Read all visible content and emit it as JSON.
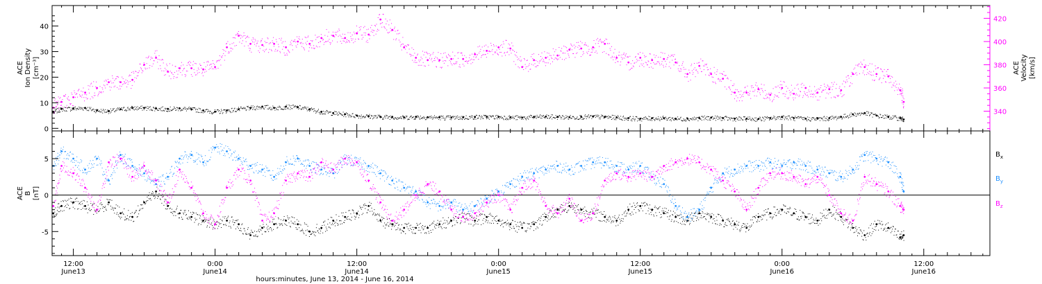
{
  "figure": {
    "xlabel": "hours:minutes, June 13, 2014 - June 16, 2014",
    "x_ticks": [
      {
        "hour": 12,
        "time": "12:00",
        "date": "June13"
      },
      {
        "hour": 24,
        "time": "0:00",
        "date": "June14"
      },
      {
        "hour": 36,
        "time": "12:00",
        "date": "June14"
      },
      {
        "hour": 48,
        "time": "0:00",
        "date": "June15"
      },
      {
        "hour": 60,
        "time": "12:00",
        "date": "June15"
      },
      {
        "hour": 72,
        "time": "0:00",
        "date": "June16"
      },
      {
        "hour": 84,
        "time": "12:00",
        "date": "June16"
      }
    ],
    "xlim_hours": [
      10.2,
      89.6
    ]
  },
  "chart_data": [
    {
      "type": "scatter",
      "panel": "top",
      "ylabel_left": [
        "ACE",
        "Ion Density",
        "[cm⁻³]"
      ],
      "ylabel_right": [
        "ACE",
        "Velocity",
        "[km/s]"
      ],
      "ylim_left": [
        -1,
        48
      ],
      "ylim_right": [
        323,
        431
      ],
      "left_ticks": [
        0,
        10,
        20,
        30,
        40
      ],
      "right_ticks": [
        340,
        360,
        380,
        400,
        420
      ],
      "series": [
        {
          "axis": "left",
          "color": "#000000",
          "x": [
            10.3,
            11,
            12,
            13,
            14,
            15,
            16,
            17,
            18,
            19,
            20,
            21,
            22,
            23,
            24,
            25,
            26,
            27,
            28,
            29,
            30,
            31,
            32,
            33,
            34,
            35,
            36,
            37,
            38,
            39,
            40,
            41,
            42,
            43,
            44,
            45,
            46,
            47,
            48,
            49,
            50,
            51,
            52,
            53,
            54,
            55,
            56,
            57,
            58,
            59,
            60,
            61,
            62,
            63,
            64,
            65,
            66,
            67,
            68,
            69,
            70,
            71,
            72,
            73,
            74,
            75,
            76,
            77,
            78,
            79,
            80,
            81,
            82,
            82.3
          ],
          "y": [
            6.5,
            7.6,
            7.8,
            8.0,
            7.0,
            6.8,
            7.5,
            8.0,
            8.0,
            7.8,
            7.6,
            7.8,
            7.5,
            7.0,
            6.5,
            7.0,
            7.5,
            8.0,
            8.5,
            8.0,
            8.5,
            8.3,
            7.5,
            6.5,
            6.0,
            5.5,
            5.0,
            4.8,
            4.5,
            4.5,
            4.3,
            4.5,
            4.4,
            4.3,
            4.2,
            4.3,
            4.5,
            4.5,
            4.5,
            4.3,
            4.2,
            4.5,
            4.6,
            4.5,
            4.4,
            4.5,
            4.6,
            4.5,
            4.3,
            4.0,
            3.8,
            4.0,
            4.0,
            3.8,
            3.8,
            4.0,
            4.2,
            4.0,
            3.8,
            3.8,
            3.7,
            4.0,
            4.5,
            4.0,
            3.8,
            3.8,
            4.0,
            4.5,
            5.5,
            6.0,
            5.0,
            4.5,
            4.0,
            3.5
          ]
        },
        {
          "axis": "right",
          "color": "#ff00ff",
          "x": [
            10.3,
            11,
            12,
            13,
            14,
            15,
            16,
            17,
            18,
            19,
            20,
            21,
            22,
            23,
            24,
            25,
            26,
            27,
            28,
            29,
            30,
            31,
            32,
            33,
            34,
            35,
            36,
            37,
            38,
            39,
            40,
            41,
            42,
            43,
            44,
            45,
            46,
            47,
            48,
            49,
            50,
            51,
            52,
            53,
            54,
            55,
            56,
            57,
            58,
            59,
            60,
            61,
            62,
            63,
            64,
            65,
            66,
            67,
            68,
            69,
            70,
            71,
            72,
            73,
            74,
            75,
            76,
            77,
            78,
            79,
            80,
            81,
            82,
            82.3
          ],
          "y": [
            343,
            348,
            352,
            356,
            360,
            365,
            365,
            367,
            380,
            386,
            374,
            377,
            377,
            376,
            378,
            395,
            405,
            398,
            397,
            398,
            395,
            400,
            398,
            403,
            405,
            403,
            407,
            406,
            419,
            410,
            395,
            386,
            384,
            384,
            385,
            385,
            389,
            392,
            395,
            394,
            378,
            384,
            386,
            388,
            393,
            394,
            395,
            398,
            386,
            382,
            386,
            384,
            385,
            382,
            372,
            379,
            372,
            368,
            356,
            356,
            359,
            354,
            360,
            355,
            360,
            356,
            359,
            358,
            372,
            378,
            372,
            370,
            358,
            348
          ]
        }
      ]
    },
    {
      "type": "scatter",
      "panel": "bottom",
      "ylabel_left": [
        "ACE",
        "B",
        "[nT]"
      ],
      "ylim": [
        -8.3,
        8.8
      ],
      "y_ticks": [
        -5,
        0,
        5
      ],
      "zero_line": true,
      "legend_position": "right",
      "series": [
        {
          "name": "Bx",
          "label_main": "B",
          "label_sub": "x",
          "color": "#000000",
          "x": [
            10.3,
            11,
            12,
            13,
            14,
            15,
            16,
            17,
            18,
            19,
            20,
            21,
            22,
            23,
            24,
            25,
            26,
            27,
            28,
            29,
            30,
            31,
            32,
            33,
            34,
            35,
            36,
            37,
            38,
            39,
            40,
            41,
            42,
            43,
            44,
            45,
            46,
            47,
            48,
            49,
            50,
            51,
            52,
            53,
            54,
            55,
            56,
            57,
            58,
            59,
            60,
            61,
            62,
            63,
            64,
            65,
            66,
            67,
            68,
            69,
            70,
            71,
            72,
            73,
            74,
            75,
            76,
            77,
            78,
            79,
            80,
            81,
            82,
            82.3
          ],
          "y": [
            -2.5,
            -1.5,
            -1.0,
            -1.5,
            -2.0,
            -1.0,
            -2.5,
            -3.0,
            -1.0,
            0.5,
            -1.5,
            -2.5,
            -3.0,
            -3.5,
            -4.0,
            -3.5,
            -4.0,
            -5.5,
            -4.5,
            -4.0,
            -3.5,
            -4.0,
            -5.0,
            -4.5,
            -3.5,
            -3.0,
            -2.5,
            -1.5,
            -3.5,
            -4.0,
            -4.5,
            -4.5,
            -4.5,
            -4.0,
            -3.5,
            -3.0,
            -3.5,
            -3.0,
            -3.5,
            -4.0,
            -4.5,
            -4.0,
            -3.0,
            -2.0,
            -1.5,
            -2.0,
            -2.5,
            -3.0,
            -3.5,
            -2.0,
            -1.5,
            -2.0,
            -2.5,
            -3.0,
            -3.5,
            -2.5,
            -3.0,
            -3.5,
            -4.0,
            -4.5,
            -3.0,
            -2.5,
            -2.0,
            -2.5,
            -3.0,
            -3.5,
            -2.0,
            -3.0,
            -4.5,
            -5.5,
            -4.0,
            -4.5,
            -5.8,
            -5.5
          ]
        },
        {
          "name": "By",
          "label_main": "B",
          "label_sub": "y",
          "color": "#1e90ff",
          "x": [
            10.3,
            11,
            12,
            13,
            14,
            15,
            16,
            17,
            18,
            19,
            20,
            21,
            22,
            23,
            24,
            25,
            26,
            27,
            28,
            29,
            30,
            31,
            32,
            33,
            34,
            35,
            36,
            37,
            38,
            39,
            40,
            41,
            42,
            43,
            44,
            45,
            46,
            47,
            48,
            49,
            50,
            51,
            52,
            53,
            54,
            55,
            56,
            57,
            58,
            59,
            60,
            61,
            62,
            63,
            64,
            65,
            66,
            67,
            68,
            69,
            70,
            71,
            72,
            73,
            74,
            75,
            76,
            77,
            78,
            79,
            80,
            81,
            82,
            82.3
          ],
          "y": [
            4.0,
            6.0,
            5.0,
            3.5,
            5.0,
            2.0,
            5.5,
            4.0,
            3.0,
            1.5,
            2.5,
            5.0,
            5.5,
            4.5,
            6.5,
            6.0,
            5.0,
            4.0,
            3.5,
            2.5,
            4.5,
            5.0,
            4.0,
            3.5,
            3.0,
            5.0,
            4.5,
            4.0,
            3.0,
            2.0,
            1.0,
            0.5,
            -1.0,
            -1.5,
            -1.0,
            -2.0,
            -1.5,
            -0.5,
            0.5,
            1.5,
            2.5,
            3.0,
            3.5,
            4.0,
            3.5,
            4.0,
            4.5,
            4.5,
            4.0,
            3.5,
            4.0,
            2.5,
            1.5,
            -1.5,
            -3.0,
            -2.0,
            1.0,
            3.0,
            3.5,
            4.0,
            4.0,
            4.5,
            4.0,
            4.5,
            4.0,
            3.5,
            3.0,
            2.5,
            3.5,
            5.5,
            5.0,
            4.5,
            2.5,
            0.5
          ]
        },
        {
          "name": "Bz",
          "label_main": "B",
          "label_sub": "z",
          "color": "#ff00ff",
          "x": [
            10.3,
            11,
            12,
            13,
            14,
            15,
            16,
            17,
            18,
            19,
            20,
            21,
            22,
            23,
            24,
            25,
            26,
            27,
            28,
            29,
            30,
            31,
            32,
            33,
            34,
            35,
            36,
            37,
            38,
            39,
            40,
            41,
            42,
            43,
            44,
            45,
            46,
            47,
            48,
            49,
            50,
            51,
            52,
            53,
            54,
            55,
            56,
            57,
            58,
            59,
            60,
            61,
            62,
            63,
            64,
            65,
            66,
            67,
            68,
            69,
            70,
            71,
            72,
            73,
            74,
            75,
            76,
            77,
            78,
            79,
            80,
            81,
            82,
            82.3
          ],
          "y": [
            -1.5,
            4.0,
            3.0,
            1.0,
            -2.0,
            4.5,
            5.0,
            2.5,
            4.0,
            2.0,
            -1.0,
            3.5,
            1.0,
            -2.5,
            -4.0,
            1.0,
            3.5,
            2.0,
            -3.5,
            -2.5,
            2.0,
            3.0,
            2.5,
            4.5,
            3.5,
            5.0,
            4.5,
            2.0,
            -1.0,
            -3.5,
            -2.0,
            0.0,
            1.5,
            0.5,
            -2.0,
            -3.0,
            -2.5,
            -1.0,
            0.0,
            -2.0,
            1.0,
            2.0,
            -1.5,
            -2.5,
            -0.5,
            -3.5,
            -2.5,
            2.0,
            3.0,
            2.5,
            3.0,
            2.5,
            4.0,
            4.5,
            5.0,
            4.5,
            3.5,
            2.0,
            0.5,
            -2.0,
            1.0,
            3.0,
            3.0,
            2.5,
            1.5,
            2.5,
            0.0,
            -2.5,
            -3.5,
            2.5,
            1.5,
            0.5,
            -1.5,
            -2.0
          ]
        }
      ]
    }
  ]
}
